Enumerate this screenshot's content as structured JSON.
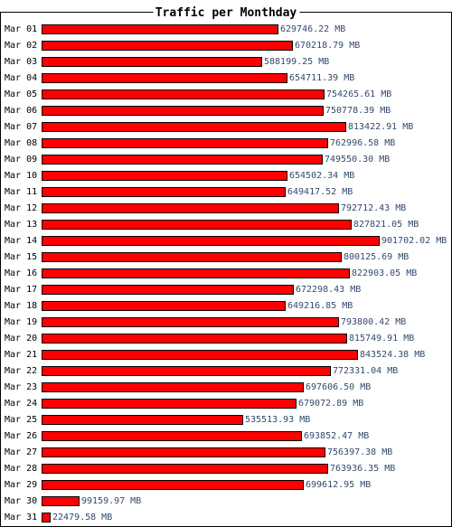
{
  "chart_data": {
    "type": "bar",
    "orientation": "horizontal",
    "title": "Traffic per Monthday",
    "bar_color": "#ff0000",
    "bar_border_color": "#000000",
    "label_color": "#000000",
    "value_color": "#34496e",
    "frame_color": "#000000",
    "background": "#ffffff",
    "grid": false,
    "legend": "none",
    "xlim": [
      0,
      901702.02
    ],
    "categories": [
      "Mar 01",
      "Mar 02",
      "Mar 03",
      "Mar 04",
      "Mar 05",
      "Mar 06",
      "Mar 07",
      "Mar 08",
      "Mar 09",
      "Mar 10",
      "Mar 11",
      "Mar 12",
      "Mar 13",
      "Mar 14",
      "Mar 15",
      "Mar 16",
      "Mar 17",
      "Mar 18",
      "Mar 19",
      "Mar 20",
      "Mar 21",
      "Mar 22",
      "Mar 23",
      "Mar 24",
      "Mar 25",
      "Mar 26",
      "Mar 27",
      "Mar 28",
      "Mar 29",
      "Mar 30",
      "Mar 31"
    ],
    "values": [
      629746.22,
      670218.79,
      588199.25,
      654711.39,
      754265.61,
      750778.39,
      813422.91,
      762996.58,
      749550.3,
      654502.34,
      649417.52,
      792712.43,
      827821.05,
      901702.02,
      800125.69,
      822903.05,
      672298.43,
      649216.85,
      793800.42,
      815749.91,
      843524.38,
      772331.04,
      697606.5,
      679072.89,
      535513.93,
      693852.47,
      756397.38,
      763936.35,
      699612.95,
      99159.97,
      22479.58
    ],
    "value_labels": [
      "629746.22 MB",
      "670218.79 MB",
      "588199.25 MB",
      "654711.39 MB",
      "754265.61 MB",
      "750778.39 MB",
      "813422.91 MB",
      "762996.58 MB",
      "749550.30 MB",
      "654502.34 MB",
      "649417.52 MB",
      "792712.43 MB",
      "827821.05 MB",
      "901702.02 MB",
      "800125.69 MB",
      "822903.05 MB",
      "672298.43 MB",
      "649216.85 MB",
      "793800.42 MB",
      "815749.91 MB",
      "843524.38 MB",
      "772331.04 MB",
      "697606.50 MB",
      "679072.89 MB",
      "535513.93 MB",
      "693852.47 MB",
      "756397.38 MB",
      "763936.35 MB",
      "699612.95 MB",
      "99159.97 MB",
      "22479.58 MB"
    ]
  }
}
